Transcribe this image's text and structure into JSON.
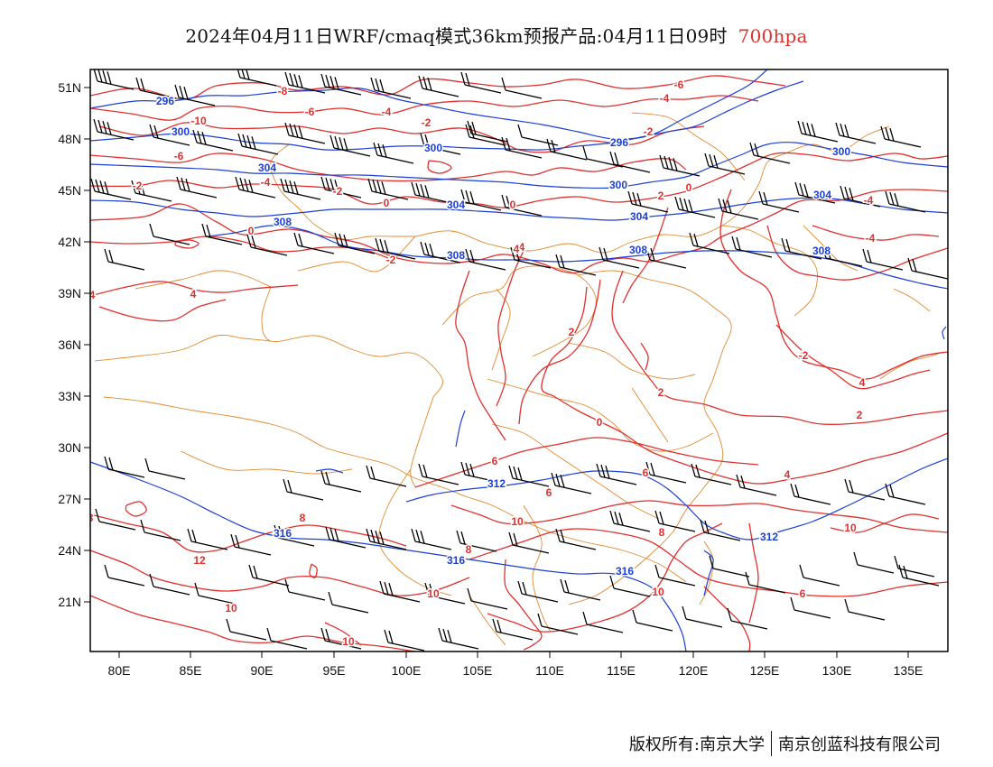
{
  "title": {
    "main": "2024年04月11日WRF/cmaq模式36km预报产品:04月11日09时",
    "level": "700hpa"
  },
  "colors": {
    "temperature": "#e0302e",
    "height": "#1c3fd6",
    "borders": "#e08a30",
    "wind": "#000000"
  },
  "axes": {
    "lat_labels": [
      "51N",
      "48N",
      "45N",
      "42N",
      "39N",
      "36N",
      "33N",
      "30N",
      "27N",
      "24N",
      "21N"
    ],
    "lon_labels": [
      "80E",
      "85E",
      "90E",
      "95E",
      "100E",
      "105E",
      "110E",
      "115E",
      "120E",
      "125E",
      "130E",
      "135E"
    ]
  },
  "contours": {
    "height_labels": [
      "296",
      "296",
      "300",
      "300",
      "300",
      "300",
      "304",
      "304",
      "304",
      "304",
      "308",
      "308",
      "308",
      "308",
      "312",
      "312",
      "316",
      "316",
      "316"
    ],
    "temperature_labels": [
      "-8",
      "-6",
      "-10",
      "-4",
      "-2",
      "-4",
      "-6",
      "-2",
      "-2",
      "-4",
      "-6",
      "-2",
      "0",
      "0",
      "2",
      "0",
      "-4",
      "0",
      "-2",
      "4",
      "-4",
      "4",
      "4",
      "2",
      "2",
      "2",
      "4",
      "0",
      "2",
      "4",
      "6",
      "6",
      "6",
      "8",
      "8",
      "8",
      "10",
      "12",
      "10",
      "10",
      "10",
      "10",
      "10",
      "6",
      "8",
      "-2",
      "4"
    ]
  },
  "footer": {
    "left": "版权所有:南京大学",
    "right": "南京创蓝科技有限公司"
  }
}
